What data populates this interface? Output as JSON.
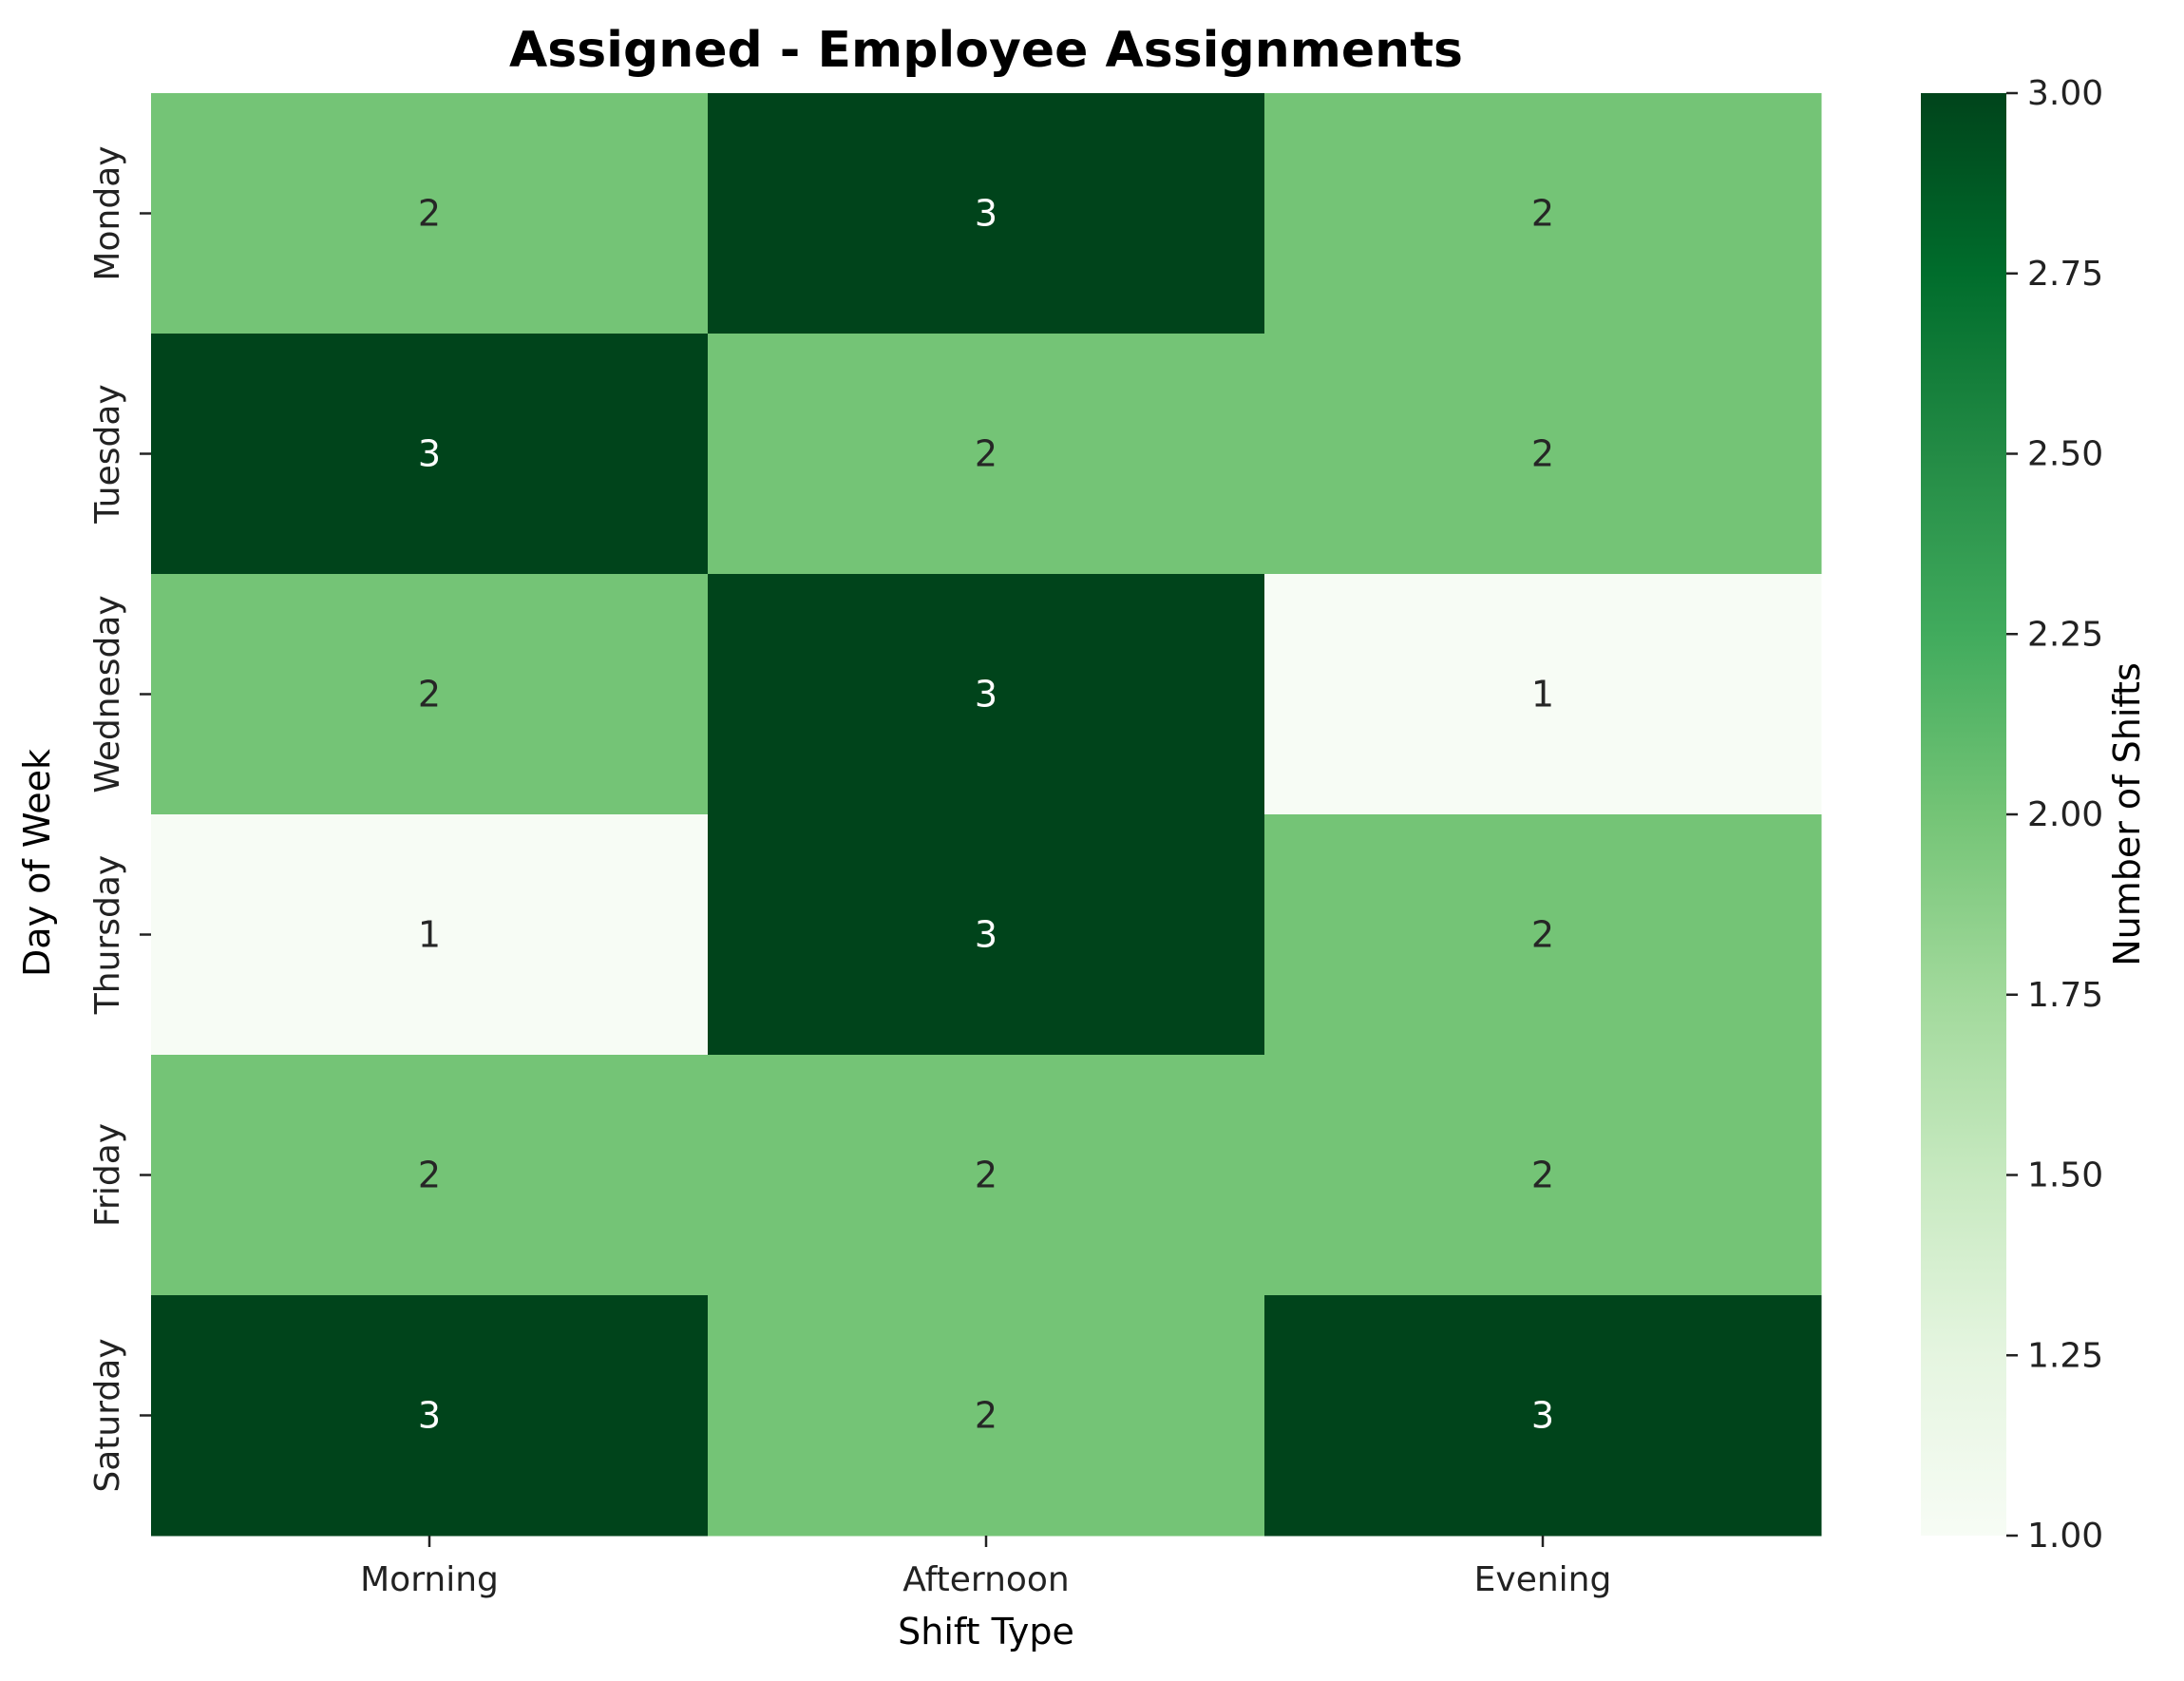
{
  "chart_data": {
    "type": "heatmap",
    "title": "Assigned - Employee Assignments",
    "xlabel": "Shift Type",
    "ylabel": "Day of Week",
    "x_categories": [
      "Morning",
      "Afternoon",
      "Evening"
    ],
    "y_categories": [
      "Monday",
      "Tuesday",
      "Wednesday",
      "Thursday",
      "Friday",
      "Saturday"
    ],
    "values": [
      [
        2,
        3,
        2
      ],
      [
        3,
        2,
        2
      ],
      [
        2,
        3,
        1
      ],
      [
        1,
        3,
        2
      ],
      [
        2,
        2,
        2
      ],
      [
        3,
        2,
        3
      ]
    ],
    "colorbar": {
      "label": "Number of Shifts",
      "range": [
        1.0,
        3.0
      ],
      "ticks": [
        "1.00",
        "1.25",
        "1.50",
        "1.75",
        "2.00",
        "2.25",
        "2.50",
        "2.75",
        "3.00"
      ],
      "colormap": "Greens",
      "colors": [
        "#f7fcf5",
        "#e5f5e0",
        "#c7e9c0",
        "#a1d99b",
        "#74c476",
        "#41ab5d",
        "#238b45",
        "#006d2c",
        "#00441b"
      ]
    },
    "grid": false
  }
}
